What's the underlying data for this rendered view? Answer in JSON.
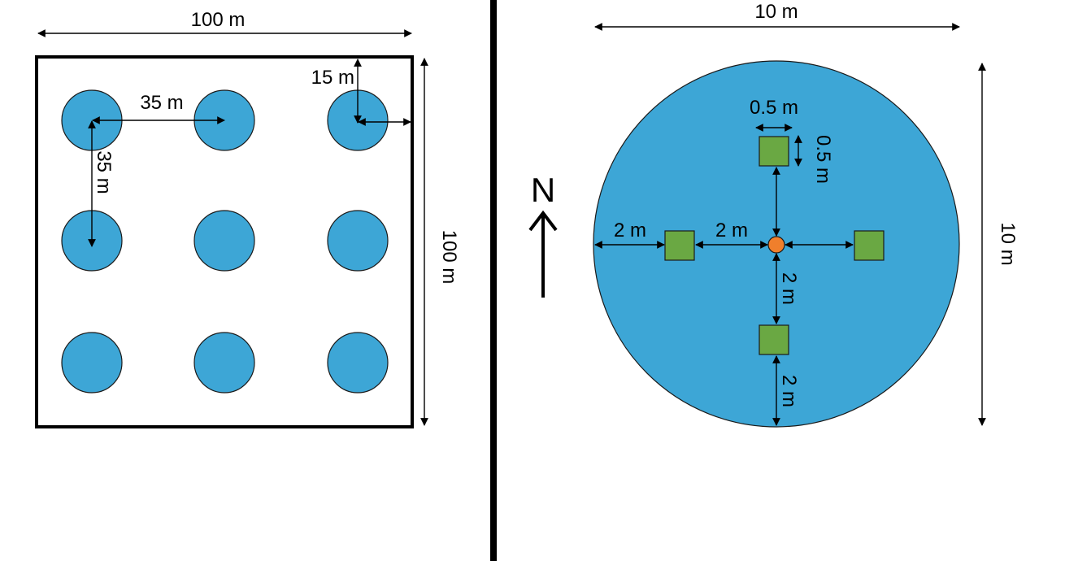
{
  "left_panel": {
    "width_label": "100 m",
    "height_label": "100 m",
    "spacing_horizontal_label": "35 m",
    "spacing_vertical_label": "35 m",
    "edge_offset_label": "15 m",
    "plot_grid": {
      "rows": 3,
      "cols": 3
    }
  },
  "right_panel": {
    "width_label": "10 m",
    "height_label": "10 m",
    "quadrat_width_label": "0.5 m",
    "quadrat_height_label": "0.5 m",
    "edge_to_quadrat_label": "2 m",
    "quadrat_to_center_label": "2 m",
    "center_to_south_quadrat_label": "2 m",
    "south_quadrat_to_edge_label": "2 m",
    "north_label": "N"
  },
  "colors": {
    "plot_fill": "#3da6d6",
    "quadrat_fill": "#6aa843",
    "center_marker_fill": "#f07f2c",
    "divider": "#000000"
  }
}
